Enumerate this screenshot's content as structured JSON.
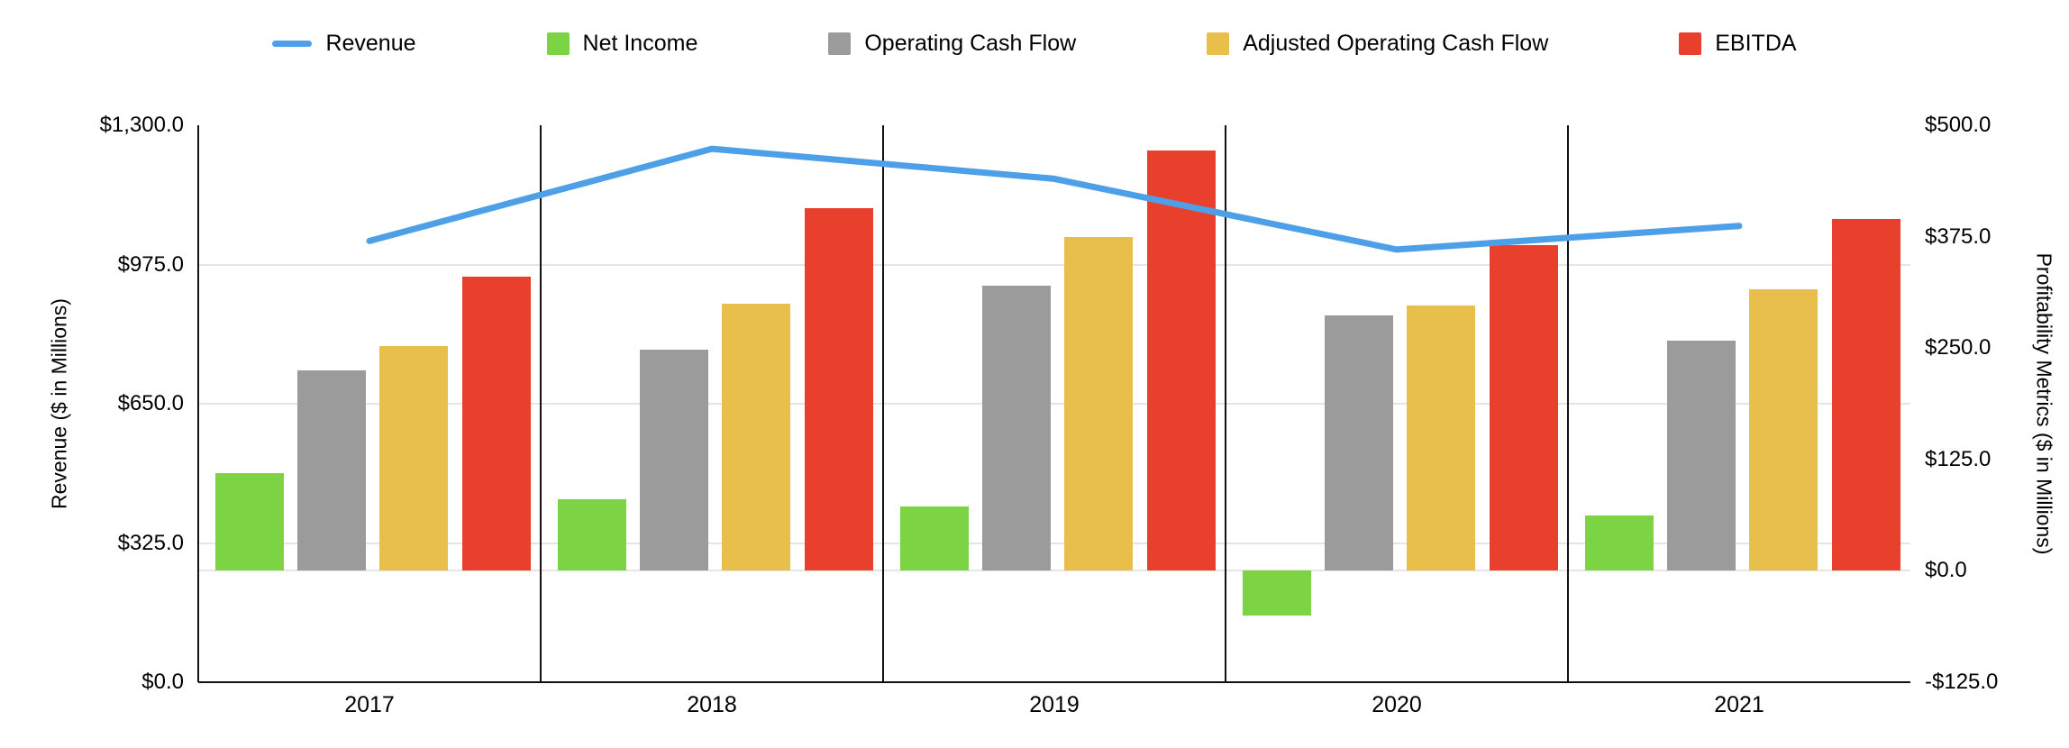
{
  "chart_data": {
    "type": "combo-bar-line",
    "title": "",
    "categories": [
      "2017",
      "2018",
      "2019",
      "2020",
      "2021"
    ],
    "line_series": {
      "name": "Revenue",
      "axis": "left",
      "color": "#4d9fe8",
      "values": [
        1030,
        1245,
        1175,
        1010,
        1065
      ]
    },
    "bar_series": [
      {
        "name": "Net Income",
        "axis": "right",
        "color": "#7cd343",
        "values": [
          110,
          80,
          72,
          -50,
          62
        ]
      },
      {
        "name": "Operating Cash Flow",
        "axis": "right",
        "color": "#9b9b9b",
        "values": [
          225,
          248,
          320,
          287,
          258
        ]
      },
      {
        "name": "Adjusted Operating Cash Flow",
        "axis": "right",
        "color": "#e9bf4b",
        "values": [
          252,
          300,
          375,
          298,
          316
        ]
      },
      {
        "name": "EBITDA",
        "axis": "right",
        "color": "#e8402c",
        "values": [
          330,
          407,
          472,
          365,
          395
        ]
      }
    ],
    "left_axis": {
      "label": "Revenue ($ in Millions)",
      "min": 0,
      "max": 1300,
      "ticks": [
        "$1,300.0",
        "$975.0",
        "$650.0",
        "$325.0",
        "$0.0"
      ]
    },
    "right_axis": {
      "label": "Profitability Metrics ($ in Millions)",
      "min": -125,
      "max": 500,
      "ticks": [
        "$500.0",
        "$375.0",
        "$250.0",
        "$125.0",
        "$0.0",
        "-$125.0"
      ]
    },
    "legend": [
      {
        "label": "Revenue",
        "marker": "line",
        "color": "#4d9fe8"
      },
      {
        "label": "Net Income",
        "marker": "square",
        "color": "#7cd343"
      },
      {
        "label": "Operating Cash Flow",
        "marker": "square",
        "color": "#9b9b9b"
      },
      {
        "label": "Adjusted Operating Cash Flow",
        "marker": "square",
        "color": "#e9bf4b"
      },
      {
        "label": "EBITDA",
        "marker": "square",
        "color": "#e8402c"
      }
    ],
    "layout": {
      "legend_position": "top",
      "grid": true,
      "background": "#ffffff",
      "gridline_color": "#e5e5e5",
      "axis_line_color": "#111111"
    }
  }
}
